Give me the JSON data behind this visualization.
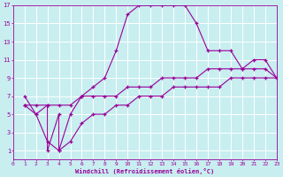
{
  "xlabel": "Windchill (Refroidissement éolien,°C)",
  "bg_color": "#c8eef0",
  "grid_color": "#ffffff",
  "line_color": "#990099",
  "xmin": 0,
  "xmax": 23,
  "ymin": 0,
  "ymax": 17,
  "yticks": [
    1,
    3,
    5,
    7,
    9,
    11,
    13,
    15,
    17
  ],
  "xticks": [
    0,
    1,
    2,
    3,
    4,
    5,
    6,
    7,
    8,
    9,
    10,
    11,
    12,
    13,
    14,
    15,
    16,
    17,
    18,
    19,
    20,
    21,
    22,
    23
  ],
  "series1": [
    [
      1,
      7
    ],
    [
      2,
      5
    ],
    [
      3,
      6
    ],
    [
      3,
      1
    ],
    [
      4,
      5
    ],
    [
      4,
      1
    ],
    [
      5,
      5
    ],
    [
      6,
      7
    ],
    [
      7,
      8
    ],
    [
      8,
      9
    ],
    [
      9,
      12
    ],
    [
      10,
      16
    ],
    [
      11,
      17
    ],
    [
      12,
      17
    ],
    [
      13,
      17
    ],
    [
      14,
      17
    ],
    [
      15,
      17
    ],
    [
      16,
      15
    ],
    [
      17,
      12
    ],
    [
      18,
      12
    ],
    [
      19,
      12
    ],
    [
      20,
      10
    ],
    [
      21,
      11
    ],
    [
      22,
      11
    ],
    [
      23,
      9
    ]
  ],
  "series2": [
    [
      1,
      6
    ],
    [
      2,
      6
    ],
    [
      3,
      6
    ],
    [
      4,
      6
    ],
    [
      5,
      6
    ],
    [
      6,
      7
    ],
    [
      7,
      7
    ],
    [
      8,
      7
    ],
    [
      9,
      7
    ],
    [
      10,
      8
    ],
    [
      11,
      8
    ],
    [
      12,
      8
    ],
    [
      13,
      9
    ],
    [
      14,
      9
    ],
    [
      15,
      9
    ],
    [
      16,
      9
    ],
    [
      17,
      10
    ],
    [
      18,
      10
    ],
    [
      19,
      10
    ],
    [
      20,
      10
    ],
    [
      21,
      10
    ],
    [
      22,
      10
    ],
    [
      23,
      9
    ]
  ],
  "series3": [
    [
      1,
      6
    ],
    [
      2,
      5
    ],
    [
      3,
      2
    ],
    [
      4,
      1
    ],
    [
      5,
      2
    ],
    [
      6,
      4
    ],
    [
      7,
      5
    ],
    [
      8,
      5
    ],
    [
      9,
      6
    ],
    [
      10,
      6
    ],
    [
      11,
      7
    ],
    [
      12,
      7
    ],
    [
      13,
      7
    ],
    [
      14,
      8
    ],
    [
      15,
      8
    ],
    [
      16,
      8
    ],
    [
      17,
      8
    ],
    [
      18,
      8
    ],
    [
      19,
      9
    ],
    [
      20,
      9
    ],
    [
      21,
      9
    ],
    [
      22,
      9
    ],
    [
      23,
      9
    ]
  ]
}
